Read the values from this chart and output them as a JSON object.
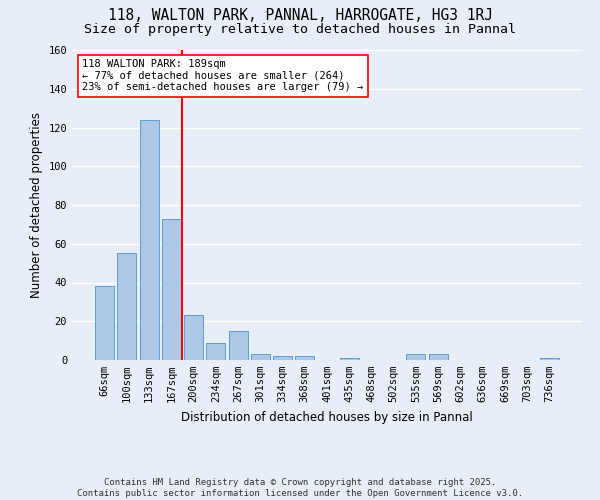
{
  "title1": "118, WALTON PARK, PANNAL, HARROGATE, HG3 1RJ",
  "title2": "Size of property relative to detached houses in Pannal",
  "xlabel": "Distribution of detached houses by size in Pannal",
  "ylabel": "Number of detached properties",
  "categories": [
    "66sqm",
    "100sqm",
    "133sqm",
    "167sqm",
    "200sqm",
    "234sqm",
    "267sqm",
    "301sqm",
    "334sqm",
    "368sqm",
    "401sqm",
    "435sqm",
    "468sqm",
    "502sqm",
    "535sqm",
    "569sqm",
    "602sqm",
    "636sqm",
    "669sqm",
    "703sqm",
    "736sqm"
  ],
  "values": [
    38,
    55,
    124,
    73,
    23,
    9,
    15,
    3,
    2,
    2,
    0,
    1,
    0,
    0,
    3,
    3,
    0,
    0,
    0,
    0,
    1
  ],
  "bar_color": "#aec6e8",
  "bar_edge_color": "#5a9fd4",
  "background_color": "#e8eef7",
  "grid_color": "#ffffff",
  "vline_color": "red",
  "annotation_text": "118 WALTON PARK: 189sqm\n← 77% of detached houses are smaller (264)\n23% of semi-detached houses are larger (79) →",
  "annotation_box_color": "white",
  "annotation_box_edge": "red",
  "ylim": [
    0,
    160
  ],
  "yticks": [
    0,
    20,
    40,
    60,
    80,
    100,
    120,
    140,
    160
  ],
  "footer": "Contains HM Land Registry data © Crown copyright and database right 2025.\nContains public sector information licensed under the Open Government Licence v3.0.",
  "title_fontsize": 10.5,
  "subtitle_fontsize": 9.5,
  "axis_fontsize": 8.5,
  "tick_fontsize": 7.5,
  "footer_fontsize": 6.5,
  "annotation_fontsize": 7.5
}
